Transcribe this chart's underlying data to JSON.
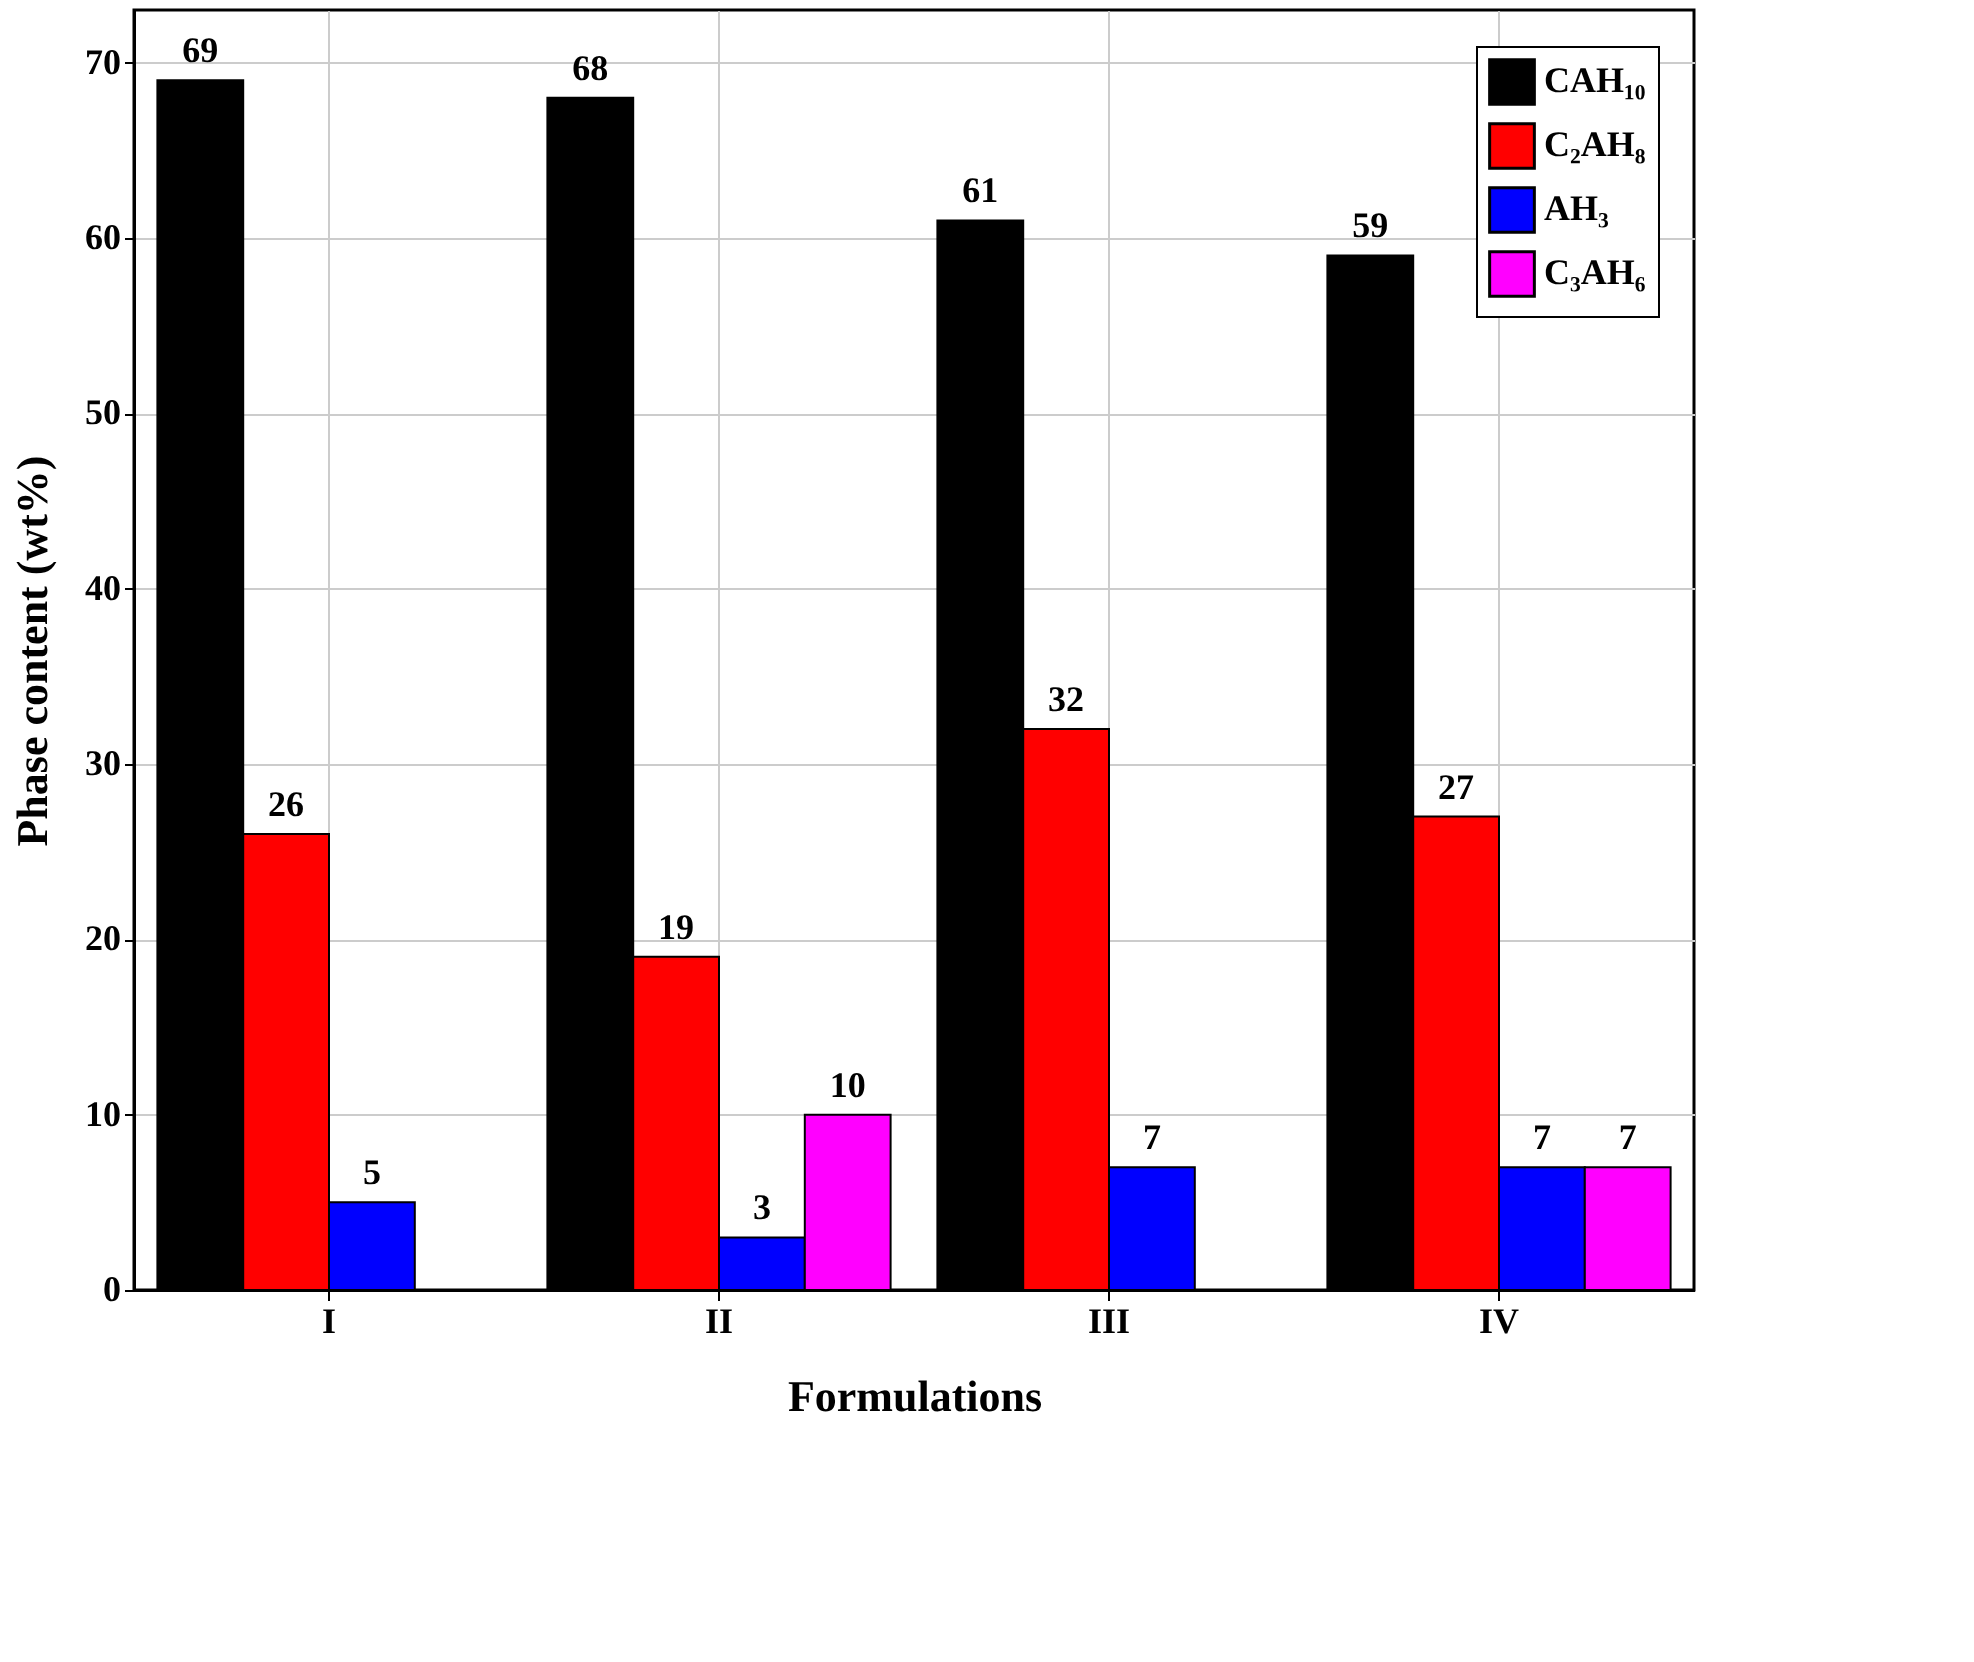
{
  "chart_data": {
    "type": "bar",
    "xlabel": "Formulations",
    "ylabel": "Phase content (wt%)",
    "categories": [
      "I",
      "II",
      "III",
      "IV"
    ],
    "series": [
      {
        "name": "CAH₁₀",
        "color": "#000000",
        "values": [
          69,
          68,
          61,
          59
        ]
      },
      {
        "name": "C₂AH₈",
        "color": "#ff0000",
        "values": [
          26,
          19,
          32,
          27
        ]
      },
      {
        "name": "AH₃",
        "color": "#0000ff",
        "values": [
          5,
          3,
          7,
          7
        ]
      },
      {
        "name": "C₃AH₆",
        "color": "#ff00ff",
        "values": [
          null,
          10,
          null,
          7
        ]
      }
    ],
    "ylim": [
      0,
      73
    ],
    "yticks": [
      0,
      10,
      20,
      30,
      40,
      50,
      60,
      70
    ],
    "grid": true,
    "legend": "top right",
    "data_labels": true
  }
}
